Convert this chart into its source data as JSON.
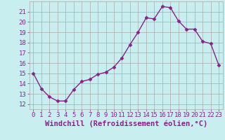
{
  "x": [
    0,
    1,
    2,
    3,
    4,
    5,
    6,
    7,
    8,
    9,
    10,
    11,
    12,
    13,
    14,
    15,
    16,
    17,
    18,
    19,
    20,
    21,
    22,
    23
  ],
  "y": [
    15.0,
    13.5,
    12.7,
    12.3,
    12.3,
    13.4,
    14.2,
    14.4,
    14.9,
    15.1,
    15.6,
    16.5,
    17.8,
    19.0,
    20.4,
    20.3,
    21.5,
    21.4,
    20.1,
    19.3,
    19.3,
    18.1,
    17.9,
    15.8
  ],
  "line_color": "#882288",
  "marker": "D",
  "marker_size": 2.5,
  "linewidth": 1.0,
  "xlabel": "Windchill (Refroidissement éolien,°C)",
  "xlabel_fontsize": 7.5,
  "ylabel_ticks": [
    12,
    13,
    14,
    15,
    16,
    17,
    18,
    19,
    20,
    21
  ],
  "xtick_labels": [
    "0",
    "1",
    "2",
    "3",
    "4",
    "5",
    "6",
    "7",
    "8",
    "9",
    "10",
    "11",
    "12",
    "13",
    "14",
    "15",
    "16",
    "17",
    "18",
    "19",
    "20",
    "21",
    "22",
    "23"
  ],
  "xlim": [
    -0.5,
    23.5
  ],
  "ylim": [
    11.5,
    22.0
  ],
  "background_color": "#c8eef0",
  "grid_color": "#aaaaaa",
  "tick_fontsize": 6.5
}
